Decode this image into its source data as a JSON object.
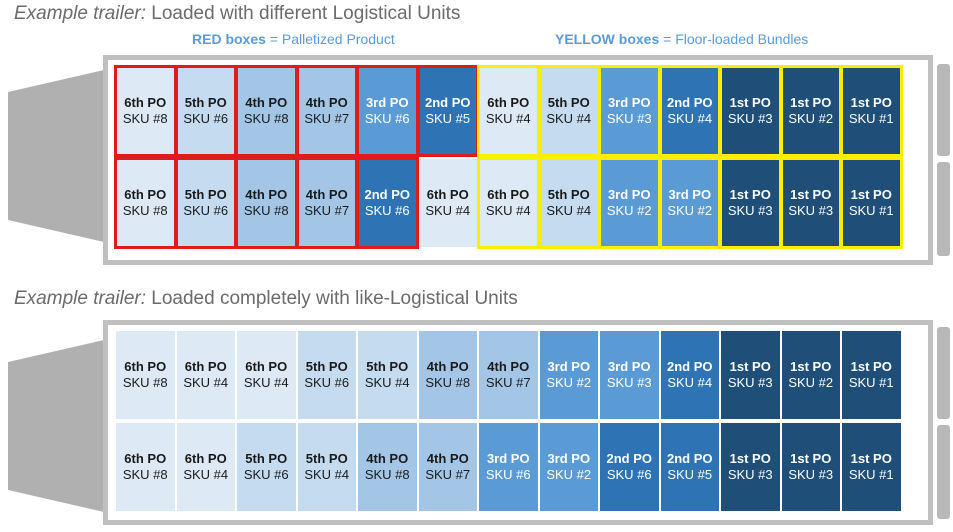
{
  "trailer1": {
    "title_italic": "Example trailer:",
    "title_rest": " Loaded with different Logistical Units",
    "legend_red_bold": "RED boxes",
    "legend_red_rest": " = Palletized Product",
    "legend_yellow_bold": "YELLOW boxes",
    "legend_yellow_rest": " = Floor-loaded Bundles",
    "rows": [
      [
        {
          "po": "6th PO",
          "sku": "SKU #8",
          "shade": 0
        },
        {
          "po": "5th PO",
          "sku": "SKU #6",
          "shade": 1
        },
        {
          "po": "4th PO",
          "sku": "SKU #8",
          "shade": 2
        },
        {
          "po": "4th PO",
          "sku": "SKU #7",
          "shade": 2
        },
        {
          "po": "3rd PO",
          "sku": "SKU #6",
          "shade": 3
        },
        {
          "po": "2nd PO",
          "sku": "SKU #5",
          "shade": 4
        },
        {
          "po": "6th PO",
          "sku": "SKU #4",
          "shade": 0
        },
        {
          "po": "5th PO",
          "sku": "SKU #4",
          "shade": 1
        },
        {
          "po": "3rd PO",
          "sku": "SKU #3",
          "shade": 3
        },
        {
          "po": "2nd PO",
          "sku": "SKU #4",
          "shade": 4
        },
        {
          "po": "1st PO",
          "sku": "SKU #3",
          "shade": 5
        },
        {
          "po": "1st PO",
          "sku": "SKU #2",
          "shade": 5
        },
        {
          "po": "1st PO",
          "sku": "SKU #1",
          "shade": 5
        }
      ],
      [
        {
          "po": "6th PO",
          "sku": "SKU #8",
          "shade": 0
        },
        {
          "po": "5th PO",
          "sku": "SKU #6",
          "shade": 1
        },
        {
          "po": "4th PO",
          "sku": "SKU #8",
          "shade": 2
        },
        {
          "po": "4th PO",
          "sku": "SKU #7",
          "shade": 2
        },
        {
          "po": "2nd PO",
          "sku": "SKU #6",
          "shade": 4
        },
        {
          "po": "6th PO",
          "sku": "SKU #4",
          "shade": 0
        },
        {
          "po": "6th PO",
          "sku": "SKU #4",
          "shade": 0
        },
        {
          "po": "5th PO",
          "sku": "SKU #4",
          "shade": 1
        },
        {
          "po": "3rd PO",
          "sku": "SKU #2",
          "shade": 3
        },
        {
          "po": "3rd PO",
          "sku": "SKU #2",
          "shade": 3
        },
        {
          "po": "1st PO",
          "sku": "SKU #3",
          "shade": 5
        },
        {
          "po": "1st PO",
          "sku": "SKU #3",
          "shade": 5
        },
        {
          "po": "1st PO",
          "sku": "SKU #1",
          "shade": 5
        }
      ]
    ]
  },
  "trailer2": {
    "title_italic": "Example trailer:",
    "title_rest": " Loaded completely with like-Logistical Units",
    "rows": [
      [
        {
          "po": "6th PO",
          "sku": "SKU #8",
          "shade": 0
        },
        {
          "po": "6th PO",
          "sku": "SKU #4",
          "shade": 0
        },
        {
          "po": "6th PO",
          "sku": "SKU #4",
          "shade": 0
        },
        {
          "po": "5th PO",
          "sku": "SKU #6",
          "shade": 1
        },
        {
          "po": "5th PO",
          "sku": "SKU #4",
          "shade": 1
        },
        {
          "po": "4th PO",
          "sku": "SKU #8",
          "shade": 2
        },
        {
          "po": "4th PO",
          "sku": "SKU #7",
          "shade": 2
        },
        {
          "po": "3rd PO",
          "sku": "SKU #2",
          "shade": 3
        },
        {
          "po": "3rd PO",
          "sku": "SKU #3",
          "shade": 3
        },
        {
          "po": "2nd PO",
          "sku": "SKU #4",
          "shade": 4
        },
        {
          "po": "1st PO",
          "sku": "SKU #3",
          "shade": 5
        },
        {
          "po": "1st PO",
          "sku": "SKU #2",
          "shade": 5
        },
        {
          "po": "1st PO",
          "sku": "SKU #1",
          "shade": 5
        }
      ],
      [
        {
          "po": "6th PO",
          "sku": "SKU #8",
          "shade": 0
        },
        {
          "po": "6th PO",
          "sku": "SKU #4",
          "shade": 0
        },
        {
          "po": "5th PO",
          "sku": "SKU #6",
          "shade": 1
        },
        {
          "po": "5th PO",
          "sku": "SKU #4",
          "shade": 1
        },
        {
          "po": "4th PO",
          "sku": "SKU #8",
          "shade": 2
        },
        {
          "po": "4th PO",
          "sku": "SKU #7",
          "shade": 2
        },
        {
          "po": "3rd PO",
          "sku": "SKU #6",
          "shade": 3
        },
        {
          "po": "3rd PO",
          "sku": "SKU #2",
          "shade": 3
        },
        {
          "po": "2nd PO",
          "sku": "SKU #6",
          "shade": 4
        },
        {
          "po": "2nd PO",
          "sku": "SKU #5",
          "shade": 4
        },
        {
          "po": "1st PO",
          "sku": "SKU #3",
          "shade": 5
        },
        {
          "po": "1st PO",
          "sku": "SKU #3",
          "shade": 5
        },
        {
          "po": "1st PO",
          "sku": "SKU #1",
          "shade": 5
        }
      ]
    ]
  },
  "shades": [
    {
      "bg": "#dde9f5",
      "fg": "#1a1a1a"
    },
    {
      "bg": "#c5dbef",
      "fg": "#1a1a1a"
    },
    {
      "bg": "#a4c6e6",
      "fg": "#1a1a1a"
    },
    {
      "bg": "#5b9bd5",
      "fg": "#ffffff"
    },
    {
      "bg": "#2e74b5",
      "fg": "#ffffff"
    },
    {
      "bg": "#1f4e79",
      "fg": "#ffffff"
    }
  ],
  "colors": {
    "red": "#e01b1b",
    "yellow": "#ffee00",
    "legend": "#5b9bd5"
  }
}
